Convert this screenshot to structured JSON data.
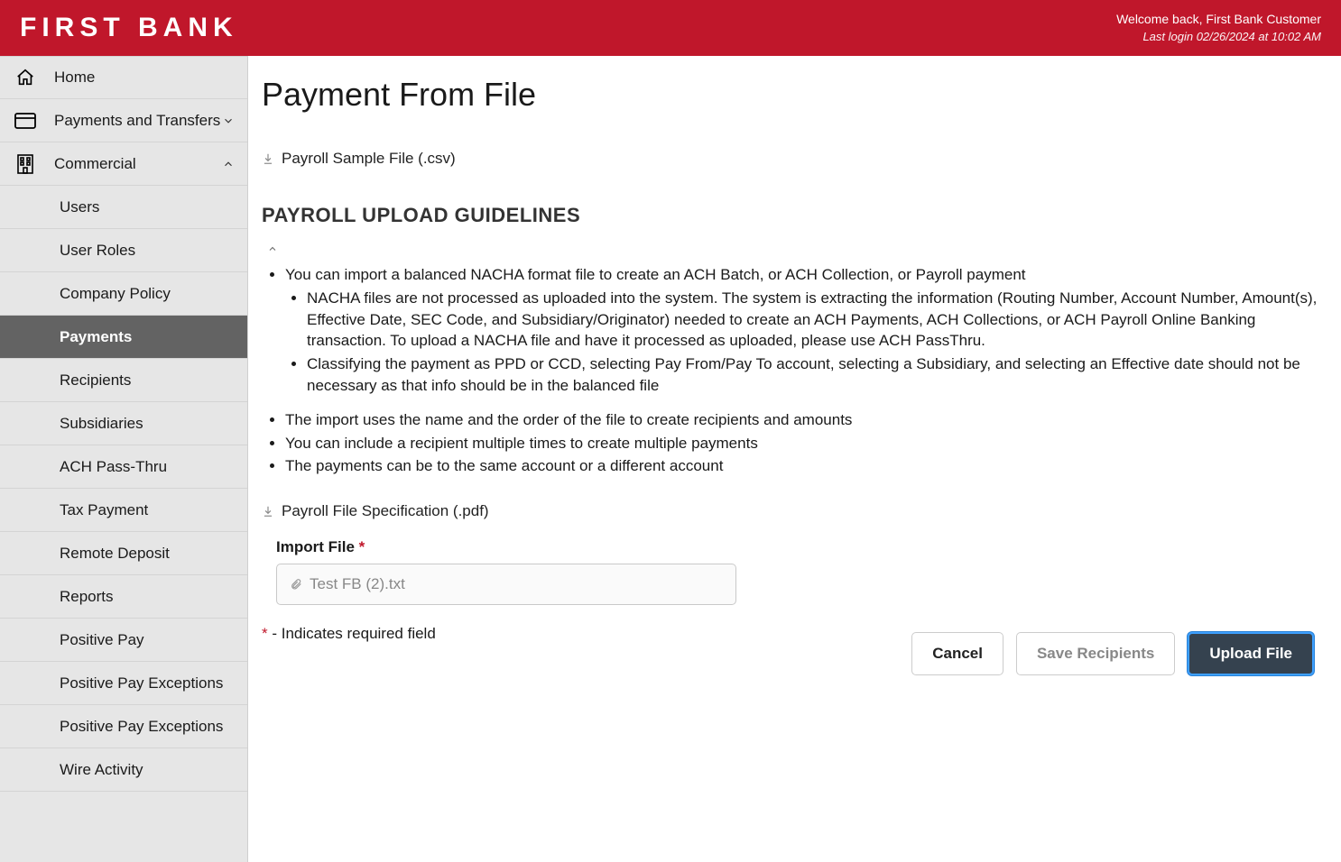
{
  "brand": {
    "name": "FIRST BANK"
  },
  "header": {
    "welcome": "Welcome back, First Bank Customer",
    "last_login": "Last login 02/26/2024 at 10:02 AM"
  },
  "sidebar": {
    "items": [
      {
        "key": "home",
        "label": "Home",
        "icon": "home-icon",
        "expandable": false
      },
      {
        "key": "payments-transfers",
        "label": "Payments and Transfers",
        "icon": "card-icon",
        "expandable": true,
        "expanded": false
      },
      {
        "key": "commercial",
        "label": "Commercial",
        "icon": "building-icon",
        "expandable": true,
        "expanded": true,
        "children": [
          {
            "key": "users",
            "label": "Users"
          },
          {
            "key": "user-roles",
            "label": "User Roles"
          },
          {
            "key": "company-policy",
            "label": "Company Policy"
          },
          {
            "key": "payments",
            "label": "Payments",
            "active": true
          },
          {
            "key": "recipients",
            "label": "Recipients"
          },
          {
            "key": "subsidiaries",
            "label": "Subsidiaries"
          },
          {
            "key": "ach-pass-thru",
            "label": "ACH Pass-Thru"
          },
          {
            "key": "tax-payment",
            "label": "Tax Payment"
          },
          {
            "key": "remote-deposit",
            "label": "Remote Deposit"
          },
          {
            "key": "reports",
            "label": "Reports"
          },
          {
            "key": "positive-pay",
            "label": "Positive Pay"
          },
          {
            "key": "positive-pay-exceptions-1",
            "label": "Positive Pay Exceptions"
          },
          {
            "key": "positive-pay-exceptions-2",
            "label": "Positive Pay Exceptions"
          },
          {
            "key": "wire-activity",
            "label": "Wire Activity"
          }
        ]
      }
    ]
  },
  "page": {
    "title": "Payment From File",
    "sample_file_label": "Payroll Sample File (.csv)",
    "guidelines_title": "PAYROLL UPLOAD GUIDELINES",
    "guidelines": {
      "bullets": [
        {
          "text": "You can import a balanced NACHA format file to create an ACH Batch, or ACH Collection, or Payroll payment",
          "sub": [
            "NACHA files are not processed as uploaded into the system. The system is extracting the information (Routing Number, Account Number, Amount(s), Effective Date, SEC Code, and Subsidiary/Originator) needed to create an ACH Payments, ACH Collections, or ACH Payroll Online Banking transaction. To upload a NACHA file and have it processed as uploaded, please use ACH PassThru.",
            "Classifying the payment as PPD or CCD, selecting Pay From/Pay To account, selecting a Subsidiary, and selecting an Effective date should not be necessary as that info should be in the balanced file"
          ]
        },
        {
          "text": "The import uses the name and the order of the file to create recipients and amounts"
        },
        {
          "text": "You can include a recipient multiple times to create multiple payments"
        },
        {
          "text": "The payments can be to the same account or a different account"
        }
      ]
    },
    "spec_file_label": "Payroll File Specification (.pdf)",
    "import_label": "Import File",
    "required_marker": "*",
    "import_value": "Test FB (2).txt",
    "required_note_prefix": "*",
    "required_note_text": " - Indicates required field",
    "actions": {
      "cancel": "Cancel",
      "save_recipients": "Save Recipients",
      "upload": "Upload File"
    }
  },
  "colors": {
    "brand_red": "#c0172b",
    "sidebar_bg": "#e6e6e6",
    "active_nav_bg": "#636363",
    "primary_btn_bg": "#35424f",
    "primary_btn_ring": "#3ea0ff"
  }
}
